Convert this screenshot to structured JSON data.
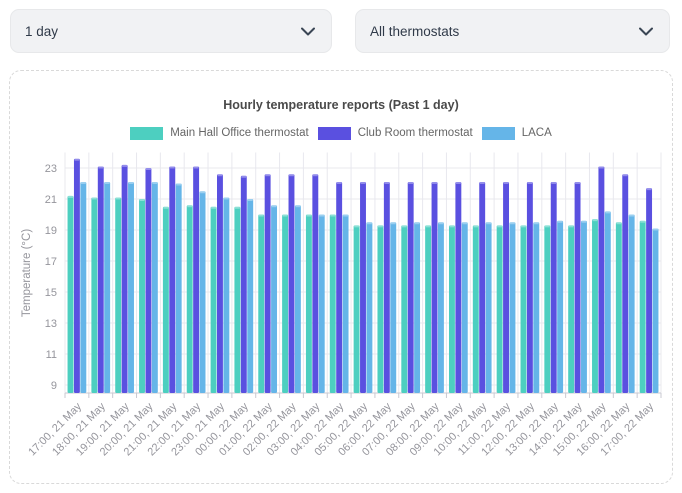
{
  "controls": {
    "period": {
      "value": "1 day"
    },
    "thermostats": {
      "value": "All thermostats"
    }
  },
  "chart_data": {
    "type": "bar",
    "title": "Hourly temperature reports (Past 1 day)",
    "xlabel": "",
    "ylabel": "Temperature (°C)",
    "ylim": [
      9,
      24
    ],
    "yticks": [
      9,
      11,
      13,
      15,
      17,
      19,
      21,
      23
    ],
    "grid": true,
    "legend_position": "top",
    "categories": [
      "17:00, 21 May",
      "18:00, 21 May",
      "19:00, 21 May",
      "20:00, 21 May",
      "21:00, 21 May",
      "22:00, 21 May",
      "23:00, 21 May",
      "00:00, 22 May",
      "01:00, 22 May",
      "02:00, 22 May",
      "03:00, 22 May",
      "04:00, 22 May",
      "05:00, 22 May",
      "06:00, 22 May",
      "07:00, 22 May",
      "08:00, 22 May",
      "09:00, 22 May",
      "10:00, 22 May",
      "11:00, 22 May",
      "12:00, 22 May",
      "13:00, 22 May",
      "14:00, 22 May",
      "15:00, 22 May",
      "16:00, 22 May",
      "17:00, 22 May"
    ],
    "series": [
      {
        "name": "Main Hall Office thermostat",
        "color": "#4dcfc0",
        "values": [
          21.2,
          21.1,
          21.1,
          21.0,
          20.5,
          20.6,
          20.5,
          20.5,
          20.0,
          20.0,
          20.0,
          20.0,
          19.3,
          19.3,
          19.3,
          19.3,
          19.3,
          19.3,
          19.3,
          19.3,
          19.3,
          19.3,
          19.7,
          19.5,
          19.6
        ]
      },
      {
        "name": "Club Room thermostat",
        "color": "#5a50e0",
        "values": [
          23.6,
          23.1,
          23.2,
          23.0,
          23.1,
          23.1,
          22.6,
          22.5,
          22.6,
          22.6,
          22.6,
          22.1,
          22.1,
          22.1,
          22.1,
          22.1,
          22.1,
          22.1,
          22.1,
          22.1,
          22.1,
          22.1,
          23.1,
          22.6,
          21.7
        ]
      },
      {
        "name": "LACA",
        "color": "#65b5e8",
        "values": [
          22.1,
          22.1,
          22.1,
          22.1,
          22.0,
          21.5,
          21.1,
          21.0,
          20.6,
          20.6,
          20.0,
          20.0,
          19.5,
          19.5,
          19.5,
          19.5,
          19.5,
          19.5,
          19.5,
          19.5,
          19.6,
          19.6,
          20.2,
          20.0,
          19.1
        ]
      }
    ],
    "colors": {
      "grid": "#e8e8ee",
      "axis": "#c9c9d2",
      "tick_text": "#95959c",
      "title_text": "#4a4a4a"
    }
  }
}
